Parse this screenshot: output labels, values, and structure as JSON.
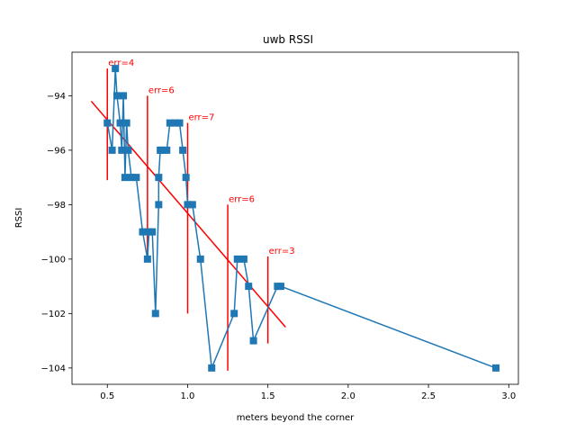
{
  "chart_data": {
    "type": "line",
    "title": "uwb RSSI",
    "xlabel": "meters beyond the corner",
    "ylabel": "RSSI",
    "xlim": [
      0.28,
      3.06
    ],
    "ylim": [
      -104.6,
      -92.4
    ],
    "xticks": [
      {
        "value": 0.5,
        "label": "0.5"
      },
      {
        "value": 1.0,
        "label": "1.0"
      },
      {
        "value": 1.5,
        "label": "1.5"
      },
      {
        "value": 2.0,
        "label": "2.0"
      },
      {
        "value": 2.5,
        "label": "2.5"
      },
      {
        "value": 3.0,
        "label": "3.0"
      }
    ],
    "yticks": [
      {
        "value": -94,
        "label": "−94"
      },
      {
        "value": -96,
        "label": "−96"
      },
      {
        "value": -98,
        "label": "−98"
      },
      {
        "value": -100,
        "label": "−100"
      },
      {
        "value": -102,
        "label": "−102"
      },
      {
        "value": -104,
        "label": "−104"
      }
    ],
    "grid": false,
    "series": [
      {
        "color": "#1f77b4",
        "marker": "square",
        "x": [
          0.5,
          0.53,
          0.55,
          0.56,
          0.58,
          0.59,
          0.6,
          0.61,
          0.62,
          0.63,
          0.65,
          0.68,
          0.72,
          0.75,
          0.76,
          0.78,
          0.8,
          0.82,
          0.82,
          0.83,
          0.84,
          0.87,
          0.89,
          0.92,
          0.95,
          0.97,
          0.99,
          1.0,
          1.03,
          1.08,
          1.15,
          1.29,
          1.31,
          1.35,
          1.38,
          1.41,
          1.56,
          1.58,
          2.92
        ],
        "y": [
          -95,
          -96,
          -93,
          -94,
          -95,
          -96,
          -94,
          -97,
          -95,
          -96,
          -97,
          -97,
          -99,
          -100,
          -99,
          -99,
          -102,
          -98,
          -97,
          -96,
          -96,
          -96,
          -95,
          -95,
          -95,
          -96,
          -97,
          -98,
          -98,
          -100,
          -104,
          -102,
          -100,
          -100,
          -101,
          -103,
          -101,
          -101,
          -104
        ]
      },
      {
        "color": "#ff0000",
        "marker": "none",
        "x": [
          0.4,
          1.61
        ],
        "y": [
          -94.2,
          -102.5
        ]
      }
    ],
    "error_bars": [
      {
        "x": 0.5,
        "ymin": -97.1,
        "ymax": -93.0,
        "label": "err=4"
      },
      {
        "x": 0.75,
        "ymin": -100.0,
        "ymax": -94.0,
        "label": "err=6"
      },
      {
        "x": 1.0,
        "ymin": -102.0,
        "ymax": -95.0,
        "label": "err=7"
      },
      {
        "x": 1.25,
        "ymin": -104.1,
        "ymax": -98.0,
        "label": "err=6"
      },
      {
        "x": 1.5,
        "ymin": -103.1,
        "ymax": -99.9,
        "label": "err=3"
      }
    ],
    "colors": {
      "series": "#1f77b4",
      "fit": "#ff0000",
      "error": "#ff0000"
    }
  }
}
